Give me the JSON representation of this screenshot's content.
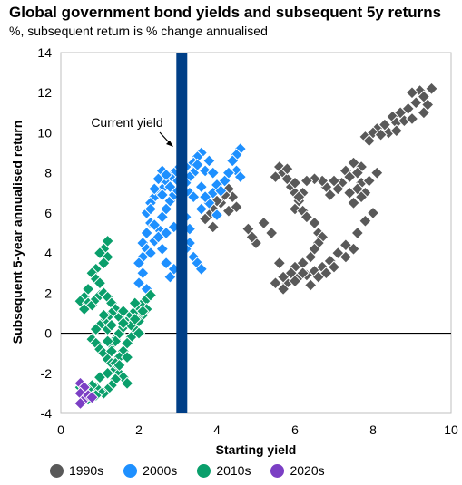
{
  "title": "Global government bond yields and subsequent 5y returns",
  "subtitle": "%, subsequent return is % change annualised",
  "chart_data": {
    "type": "scatter",
    "xlabel": "Starting yield",
    "ylabel": "Subsequent 5-year annualised return",
    "xlim": [
      0,
      10
    ],
    "ylim": [
      -4,
      14
    ],
    "xticks": [
      "0",
      "2",
      "4",
      "6",
      "8",
      "10"
    ],
    "yticks": [
      "-4",
      "-2",
      "0",
      "2",
      "4",
      "6",
      "8",
      "10",
      "12",
      "14"
    ],
    "grid": false,
    "legend_position": "bottom",
    "annotations": [
      {
        "text": "Current yield",
        "x": 3.1,
        "y_range": [
          -4,
          14
        ],
        "color": "#003f87"
      }
    ],
    "series": [
      {
        "name": "1990s",
        "color": "#595959",
        "points": [
          [
            9.5,
            12.2
          ],
          [
            9.2,
            12.1
          ],
          [
            9.3,
            11.8
          ],
          [
            9.0,
            12.0
          ],
          [
            9.1,
            11.5
          ],
          [
            8.9,
            11.2
          ],
          [
            9.3,
            11.0
          ],
          [
            9.4,
            11.4
          ],
          [
            8.7,
            11.0
          ],
          [
            8.5,
            10.8
          ],
          [
            8.6,
            10.5
          ],
          [
            8.8,
            10.6
          ],
          [
            9.0,
            10.7
          ],
          [
            8.3,
            10.4
          ],
          [
            8.1,
            10.2
          ],
          [
            8.4,
            10.0
          ],
          [
            8.6,
            10.1
          ],
          [
            8.0,
            10.0
          ],
          [
            7.8,
            9.8
          ],
          [
            8.2,
            9.9
          ],
          [
            7.9,
            9.6
          ],
          [
            7.7,
            8.3
          ],
          [
            7.6,
            8.0
          ],
          [
            7.5,
            8.5
          ],
          [
            7.3,
            8.1
          ],
          [
            7.4,
            7.8
          ],
          [
            7.7,
            7.5
          ],
          [
            7.8,
            7.0
          ],
          [
            7.6,
            7.2
          ],
          [
            7.4,
            7.0
          ],
          [
            7.5,
            6.5
          ],
          [
            7.2,
            7.5
          ],
          [
            7.0,
            7.6
          ],
          [
            7.1,
            7.2
          ],
          [
            6.9,
            6.9
          ],
          [
            6.8,
            7.3
          ],
          [
            6.7,
            7.6
          ],
          [
            6.5,
            7.7
          ],
          [
            6.3,
            7.6
          ],
          [
            6.2,
            7.0
          ],
          [
            6.1,
            6.6
          ],
          [
            6.0,
            6.2
          ],
          [
            6.2,
            6.1
          ],
          [
            6.3,
            5.8
          ],
          [
            6.5,
            5.5
          ],
          [
            6.6,
            5.0
          ],
          [
            6.7,
            4.8
          ],
          [
            6.6,
            4.5
          ],
          [
            6.5,
            4.2
          ],
          [
            6.4,
            3.8
          ],
          [
            6.2,
            3.5
          ],
          [
            6.0,
            3.3
          ],
          [
            5.9,
            3.0
          ],
          [
            6.1,
            2.8
          ],
          [
            6.3,
            2.9
          ],
          [
            6.5,
            3.1
          ],
          [
            6.7,
            3.3
          ],
          [
            6.9,
            3.6
          ],
          [
            7.1,
            4.0
          ],
          [
            7.3,
            4.4
          ],
          [
            7.6,
            5.0
          ],
          [
            7.8,
            5.6
          ],
          [
            8.0,
            6.0
          ],
          [
            7.7,
            6.8
          ],
          [
            7.9,
            7.6
          ],
          [
            8.1,
            8.0
          ],
          [
            5.8,
            2.5
          ],
          [
            5.7,
            2.2
          ],
          [
            5.5,
            2.5
          ],
          [
            5.6,
            3.5
          ],
          [
            5.7,
            2.8
          ],
          [
            6.0,
            2.6
          ],
          [
            6.2,
            3.0
          ],
          [
            6.4,
            2.4
          ],
          [
            6.6,
            2.8
          ],
          [
            6.8,
            3.0
          ],
          [
            7.0,
            3.3
          ],
          [
            7.3,
            3.8
          ],
          [
            7.5,
            4.2
          ],
          [
            5.4,
            5.0
          ],
          [
            5.2,
            5.5
          ],
          [
            5.0,
            4.5
          ],
          [
            4.9,
            4.8
          ],
          [
            4.8,
            5.2
          ],
          [
            5.6,
            8.3
          ],
          [
            5.7,
            8.0
          ],
          [
            5.8,
            7.7
          ],
          [
            5.9,
            7.3
          ],
          [
            6.0,
            7.0
          ],
          [
            6.1,
            6.8
          ],
          [
            5.5,
            7.8
          ],
          [
            5.8,
            8.2
          ],
          [
            6.0,
            7.5
          ],
          [
            4.5,
            6.3
          ],
          [
            4.4,
            6.8
          ],
          [
            4.3,
            7.2
          ],
          [
            4.2,
            6.9
          ],
          [
            4.1,
            6.5
          ],
          [
            4.0,
            6.6
          ],
          [
            3.9,
            6.2
          ],
          [
            3.8,
            5.9
          ],
          [
            3.7,
            5.7
          ],
          [
            3.9,
            5.3
          ],
          [
            4.3,
            6.1
          ]
        ]
      },
      {
        "name": "2000s",
        "color": "#1e90ff",
        "points": [
          [
            4.6,
            9.2
          ],
          [
            4.5,
            8.9
          ],
          [
            4.4,
            8.6
          ],
          [
            4.5,
            8.1
          ],
          [
            4.3,
            8.0
          ],
          [
            4.6,
            7.8
          ],
          [
            4.2,
            7.6
          ],
          [
            4.0,
            7.4
          ],
          [
            3.9,
            7.0
          ],
          [
            3.8,
            6.5
          ],
          [
            3.7,
            6.8
          ],
          [
            3.6,
            7.3
          ],
          [
            3.7,
            8.1
          ],
          [
            3.8,
            8.6
          ],
          [
            3.6,
            9.0
          ],
          [
            3.5,
            8.8
          ],
          [
            3.4,
            8.5
          ],
          [
            3.4,
            8.0
          ],
          [
            3.3,
            7.8
          ],
          [
            3.2,
            7.5
          ],
          [
            3.1,
            7.2
          ],
          [
            3.0,
            8.2
          ],
          [
            2.9,
            8.0
          ],
          [
            2.8,
            7.8
          ],
          [
            2.7,
            7.5
          ],
          [
            2.6,
            7.2
          ],
          [
            2.5,
            7.0
          ],
          [
            2.4,
            6.8
          ],
          [
            2.3,
            6.5
          ],
          [
            2.2,
            6.0
          ],
          [
            2.3,
            5.5
          ],
          [
            2.2,
            5.0
          ],
          [
            2.1,
            4.5
          ],
          [
            2.2,
            4.2
          ],
          [
            2.3,
            4.0
          ],
          [
            2.1,
            3.8
          ],
          [
            2.0,
            3.5
          ],
          [
            2.1,
            3.0
          ],
          [
            2.0,
            2.5
          ],
          [
            2.2,
            2.2
          ],
          [
            2.4,
            4.6
          ],
          [
            2.5,
            5.2
          ],
          [
            2.6,
            5.8
          ],
          [
            2.7,
            6.2
          ],
          [
            2.8,
            6.6
          ],
          [
            2.9,
            6.9
          ],
          [
            3.0,
            7.1
          ],
          [
            3.1,
            6.4
          ],
          [
            3.2,
            5.8
          ],
          [
            3.3,
            5.2
          ],
          [
            3.3,
            4.5
          ],
          [
            3.4,
            3.8
          ],
          [
            3.5,
            3.5
          ],
          [
            3.6,
            3.2
          ],
          [
            3.2,
            4.2
          ],
          [
            3.1,
            3.8
          ],
          [
            2.9,
            3.2
          ],
          [
            2.8,
            2.8
          ],
          [
            2.7,
            3.5
          ],
          [
            2.6,
            4.2
          ],
          [
            2.5,
            4.8
          ],
          [
            2.4,
            5.4
          ],
          [
            2.3,
            6.2
          ],
          [
            2.4,
            7.2
          ],
          [
            2.5,
            7.7
          ],
          [
            2.6,
            8.1
          ],
          [
            2.7,
            7.9
          ],
          [
            3.0,
            7.6
          ],
          [
            3.2,
            8.3
          ],
          [
            3.5,
            8.4
          ],
          [
            3.9,
            8.0
          ],
          [
            4.1,
            7.1
          ],
          [
            3.3,
            7.0
          ],
          [
            2.8,
            7.3
          ],
          [
            2.9,
            5.3
          ],
          [
            2.7,
            5.0
          ],
          [
            2.6,
            6.9
          ],
          [
            3.4,
            6.8
          ],
          [
            3.6,
            6.2
          ],
          [
            4.0,
            5.9
          ]
        ]
      },
      {
        "name": "2010s",
        "color": "#0a9f6b",
        "points": [
          [
            1.2,
            4.6
          ],
          [
            1.1,
            4.2
          ],
          [
            1.0,
            4.0
          ],
          [
            1.2,
            3.8
          ],
          [
            1.1,
            3.5
          ],
          [
            0.9,
            3.2
          ],
          [
            0.8,
            3.0
          ],
          [
            0.9,
            2.7
          ],
          [
            1.0,
            2.5
          ],
          [
            0.7,
            2.2
          ],
          [
            0.6,
            1.8
          ],
          [
            0.5,
            1.6
          ],
          [
            0.7,
            1.5
          ],
          [
            0.6,
            1.2
          ],
          [
            0.8,
            1.4
          ],
          [
            0.9,
            1.7
          ],
          [
            1.0,
            1.9
          ],
          [
            1.1,
            2.0
          ],
          [
            1.2,
            1.8
          ],
          [
            1.3,
            1.5
          ],
          [
            1.4,
            1.2
          ],
          [
            1.3,
            1.0
          ],
          [
            1.2,
            0.8
          ],
          [
            1.1,
            0.6
          ],
          [
            1.0,
            0.4
          ],
          [
            0.9,
            0.2
          ],
          [
            0.8,
            -0.3
          ],
          [
            0.9,
            -0.5
          ],
          [
            1.0,
            -0.8
          ],
          [
            1.1,
            -1.0
          ],
          [
            1.2,
            -1.3
          ],
          [
            1.3,
            -1.5
          ],
          [
            1.4,
            -1.8
          ],
          [
            1.5,
            -2.0
          ],
          [
            1.6,
            -2.2
          ],
          [
            1.7,
            -2.5
          ],
          [
            1.4,
            -2.3
          ],
          [
            1.3,
            -2.6
          ],
          [
            1.2,
            -2.8
          ],
          [
            1.1,
            -3.0
          ],
          [
            1.0,
            -2.9
          ],
          [
            0.9,
            -2.7
          ],
          [
            0.8,
            -2.6
          ],
          [
            0.7,
            -2.8
          ],
          [
            0.6,
            -3.0
          ],
          [
            0.5,
            -2.7
          ],
          [
            0.7,
            -3.3
          ],
          [
            0.9,
            -3.1
          ],
          [
            1.0,
            -2.2
          ],
          [
            1.2,
            -2.0
          ],
          [
            1.3,
            -0.6
          ],
          [
            1.4,
            -0.3
          ],
          [
            1.5,
            0.0
          ],
          [
            1.6,
            0.3
          ],
          [
            1.7,
            0.6
          ],
          [
            1.8,
            0.9
          ],
          [
            1.9,
            1.1
          ],
          [
            2.0,
            1.3
          ],
          [
            2.1,
            1.5
          ],
          [
            2.2,
            1.7
          ],
          [
            2.3,
            1.9
          ],
          [
            2.2,
            1.2
          ],
          [
            2.1,
            0.9
          ],
          [
            2.0,
            0.6
          ],
          [
            1.9,
            0.2
          ],
          [
            1.8,
            -0.2
          ],
          [
            1.7,
            -0.5
          ],
          [
            1.6,
            -0.9
          ],
          [
            1.5,
            -1.2
          ],
          [
            1.4,
            -1.5
          ],
          [
            1.3,
            -0.9
          ],
          [
            1.2,
            0.2
          ],
          [
            1.1,
            0.9
          ],
          [
            1.5,
            0.8
          ],
          [
            1.6,
            1.1
          ],
          [
            1.8,
            0.4
          ],
          [
            1.9,
            0.7
          ],
          [
            2.0,
            0.0
          ],
          [
            1.7,
            -1.2
          ],
          [
            1.5,
            -1.6
          ],
          [
            1.4,
            -0.4
          ],
          [
            1.6,
            0.5
          ],
          [
            1.3,
            0.4
          ],
          [
            1.2,
            -0.4
          ],
          [
            1.9,
            1.5
          ],
          [
            2.1,
            1.1
          ]
        ]
      },
      {
        "name": "2020s",
        "color": "#7b3fc4",
        "points": [
          [
            0.5,
            -2.5
          ],
          [
            0.6,
            -2.7
          ],
          [
            0.5,
            -3.0
          ],
          [
            0.6,
            -3.3
          ],
          [
            0.7,
            -3.1
          ],
          [
            0.5,
            -3.5
          ],
          [
            0.8,
            -3.2
          ]
        ]
      }
    ]
  }
}
